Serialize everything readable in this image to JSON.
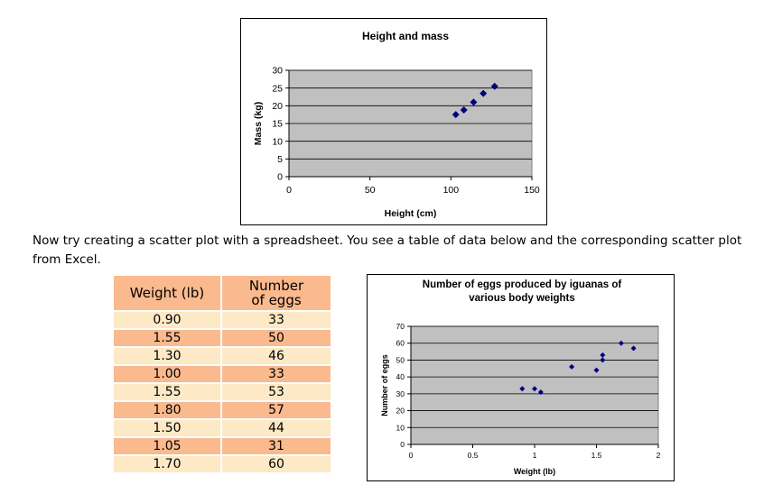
{
  "paragraph": "Now try creating a scatter plot with a spreadsheet. You see a table of data below and the corresponding scatter plot from Excel.",
  "table": {
    "headers": [
      "Weight (lb)",
      "Number of eggs"
    ],
    "rows": [
      [
        "0.90",
        "33"
      ],
      [
        "1.55",
        "50"
      ],
      [
        "1.30",
        "46"
      ],
      [
        "1.00",
        "33"
      ],
      [
        "1.55",
        "53"
      ],
      [
        "1.80",
        "57"
      ],
      [
        "1.50",
        "44"
      ],
      [
        "1.05",
        "31"
      ],
      [
        "1.70",
        "60"
      ]
    ]
  },
  "chart_data": [
    {
      "type": "scatter",
      "title": "Height and mass",
      "xlabel": "Height (cm)",
      "ylabel": "Mass (kg)",
      "xlim": [
        0,
        150
      ],
      "ylim": [
        0,
        30
      ],
      "xticks": [
        0,
        50,
        100,
        150
      ],
      "yticks": [
        0,
        5,
        10,
        15,
        20,
        25,
        30
      ],
      "grid": true,
      "marker_color": "#000080",
      "plot_bg": "#c0c0c0",
      "series": [
        {
          "x": [
            103,
            108,
            114,
            120,
            127
          ],
          "y": [
            17.5,
            18.8,
            21,
            23.5,
            25.5
          ]
        }
      ]
    },
    {
      "type": "scatter",
      "title": "Number of eggs produced by iguanas of various body weights",
      "title_lines": [
        "Number of eggs produced by iguanas of",
        "various body weights"
      ],
      "xlabel": "Weight (lb)",
      "ylabel": "Number of eggs",
      "xlim": [
        0,
        2
      ],
      "ylim": [
        0,
        70
      ],
      "xticks": [
        "0",
        "0.5",
        "1",
        "1.5",
        "2"
      ],
      "yticks": [
        0,
        10,
        20,
        30,
        40,
        50,
        60,
        70
      ],
      "grid": true,
      "marker_color": "#000080",
      "plot_bg": "#c0c0c0",
      "series": [
        {
          "x": [
            0.9,
            1.55,
            1.3,
            1.0,
            1.55,
            1.8,
            1.5,
            1.05,
            1.7
          ],
          "y": [
            33,
            50,
            46,
            33,
            53,
            57,
            44,
            31,
            60
          ]
        }
      ]
    }
  ]
}
